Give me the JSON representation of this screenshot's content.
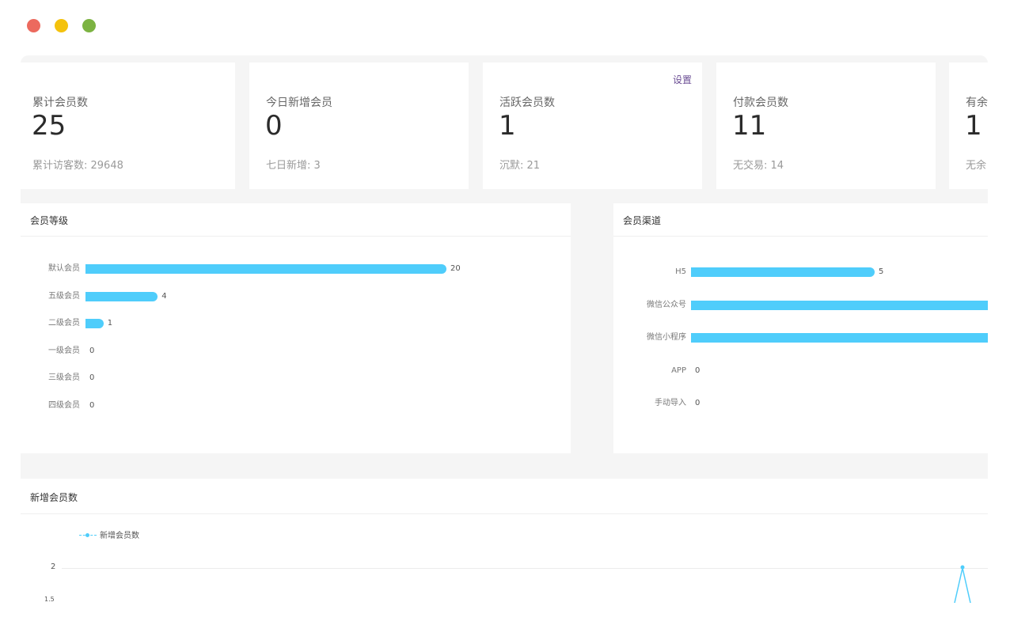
{
  "window": {
    "controls": [
      "close",
      "minimize",
      "maximize"
    ],
    "colors": {
      "close": "#ec6a5e",
      "minimize": "#f4c20d",
      "maximize": "#7cb342"
    }
  },
  "stats": [
    {
      "label": "累计会员数",
      "value": "25",
      "sub": "累计访客数: 29648"
    },
    {
      "label": "今日新增会员",
      "value": "0",
      "sub": "七日新增: 3"
    },
    {
      "label": "活跃会员数",
      "value": "1",
      "sub": "沉默: 21",
      "link": "设置"
    },
    {
      "label": "付款会员数",
      "value": "11",
      "sub": "无交易: 14"
    },
    {
      "label": "有余",
      "value": "1",
      "sub": "无余"
    }
  ],
  "level_panel": {
    "title": "会员等级",
    "items": [
      {
        "label": "默认会员",
        "value": 20
      },
      {
        "label": "五级会员",
        "value": 4
      },
      {
        "label": "二级会员",
        "value": 1
      },
      {
        "label": "一级会员",
        "value": 0
      },
      {
        "label": "三级会员",
        "value": 0
      },
      {
        "label": "四级会员",
        "value": 0
      }
    ]
  },
  "channel_panel": {
    "title": "会员渠道",
    "items": [
      {
        "label": "H5",
        "value": 5
      },
      {
        "label": "微信公众号",
        "value": null
      },
      {
        "label": "微信小程序",
        "value": null
      },
      {
        "label": "APP",
        "value": 0
      },
      {
        "label": "手动导入",
        "value": 0
      }
    ]
  },
  "new_members": {
    "title": "新增会员数",
    "legend": "新增会员数",
    "ytick_top": "2",
    "ytick_next": "1.5"
  },
  "chart_data": [
    {
      "type": "bar",
      "orientation": "horizontal",
      "title": "会员等级",
      "categories": [
        "默认会员",
        "五级会员",
        "二级会员",
        "一级会员",
        "三级会员",
        "四级会员"
      ],
      "values": [
        20,
        4,
        1,
        0,
        0,
        0
      ]
    },
    {
      "type": "bar",
      "orientation": "horizontal",
      "title": "会员渠道",
      "categories": [
        "H5",
        "微信公众号",
        "微信小程序",
        "APP",
        "手动导入"
      ],
      "values": [
        5,
        null,
        null,
        0,
        0
      ]
    },
    {
      "type": "line",
      "title": "新增会员数",
      "series": [
        {
          "name": "新增会员数",
          "values": [
            2
          ]
        }
      ],
      "yticks": [
        "2"
      ]
    }
  ],
  "colors": {
    "bar": "#4fcdfb",
    "accent_link": "#6a4c93"
  }
}
